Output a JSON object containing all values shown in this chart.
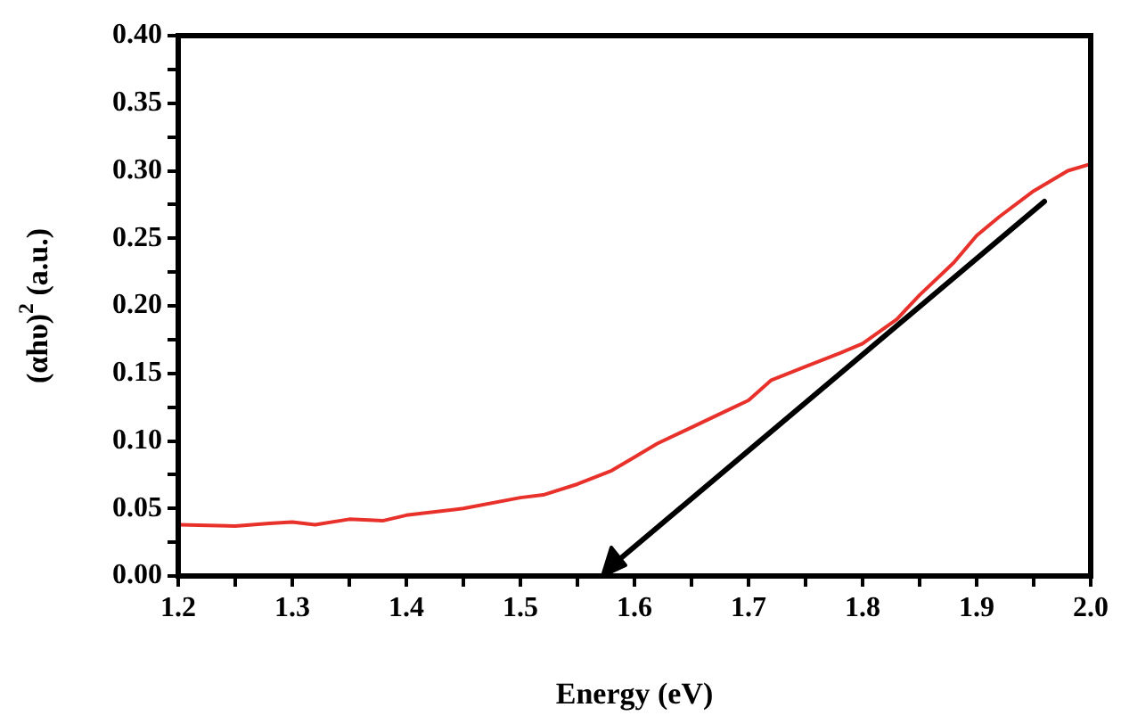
{
  "chart_data": {
    "type": "line",
    "xlabel": "Energy (eV)",
    "ylabel": "(αhυ)$^{2}$ (a.u.)",
    "xlim": [
      1.2,
      2.0
    ],
    "xticks": [
      {
        "value": 1.2,
        "label": "1.2"
      },
      {
        "value": 1.25,
        "label": null
      },
      {
        "value": 1.3,
        "label": "1.3"
      },
      {
        "value": 1.35,
        "label": null
      },
      {
        "value": 1.4,
        "label": "1.4"
      },
      {
        "value": 1.45,
        "label": null
      },
      {
        "value": 1.5,
        "label": "1.5"
      },
      {
        "value": 1.55,
        "label": null
      },
      {
        "value": 1.6,
        "label": "1.6"
      },
      {
        "value": 1.65,
        "label": null
      },
      {
        "value": 1.7,
        "label": "1.7"
      },
      {
        "value": 1.75,
        "label": null
      },
      {
        "value": 1.8,
        "label": "1.8"
      },
      {
        "value": 1.85,
        "label": null
      },
      {
        "value": 1.9,
        "label": "1.9"
      },
      {
        "value": 1.95,
        "label": null
      },
      {
        "value": 2.0,
        "label": "2.0"
      }
    ],
    "ylim": [
      0,
      0.4
    ],
    "yticks": [
      {
        "value": 0,
        "label": "0.00"
      },
      {
        "value": 0.025,
        "label": null
      },
      {
        "value": 0.05,
        "label": "0.05"
      },
      {
        "value": 0.075,
        "label": null
      },
      {
        "value": 0.1,
        "label": "0.10"
      },
      {
        "value": 0.125,
        "label": null
      },
      {
        "value": 0.15,
        "label": "0.15"
      },
      {
        "value": 0.175,
        "label": null
      },
      {
        "value": 0.2,
        "label": "0.20"
      },
      {
        "value": 0.225,
        "label": null
      },
      {
        "value": 0.25,
        "label": "0.25"
      },
      {
        "value": 0.275,
        "label": null
      },
      {
        "value": 0.3,
        "label": "0.30"
      },
      {
        "value": 0.325,
        "label": null
      },
      {
        "value": 0.35,
        "label": "0.35"
      },
      {
        "value": 0.375,
        "label": null
      },
      {
        "value": 0.4,
        "label": "0.40"
      }
    ],
    "grid": false,
    "legend": false,
    "marker": "none",
    "line_style": "solid",
    "series": [
      {
        "color": "#e8312a",
        "x": [
          1.2,
          1.25,
          1.28,
          1.3,
          1.32,
          1.35,
          1.38,
          1.4,
          1.45,
          1.5,
          1.52,
          1.55,
          1.58,
          1.6,
          1.62,
          1.65,
          1.68,
          1.7,
          1.72,
          1.75,
          1.78,
          1.8,
          1.83,
          1.85,
          1.88,
          1.9,
          1.92,
          1.95,
          1.98,
          2.0
        ],
        "values": [
          0.038,
          0.037,
          0.039,
          0.04,
          0.038,
          0.042,
          0.041,
          0.045,
          0.05,
          0.058,
          0.06,
          0.068,
          0.078,
          0.088,
          0.098,
          0.11,
          0.122,
          0.13,
          0.145,
          0.155,
          0.165,
          0.172,
          0.19,
          0.208,
          0.232,
          0.252,
          0.266,
          0.285,
          0.3,
          0.305
        ]
      }
    ]
  }
}
